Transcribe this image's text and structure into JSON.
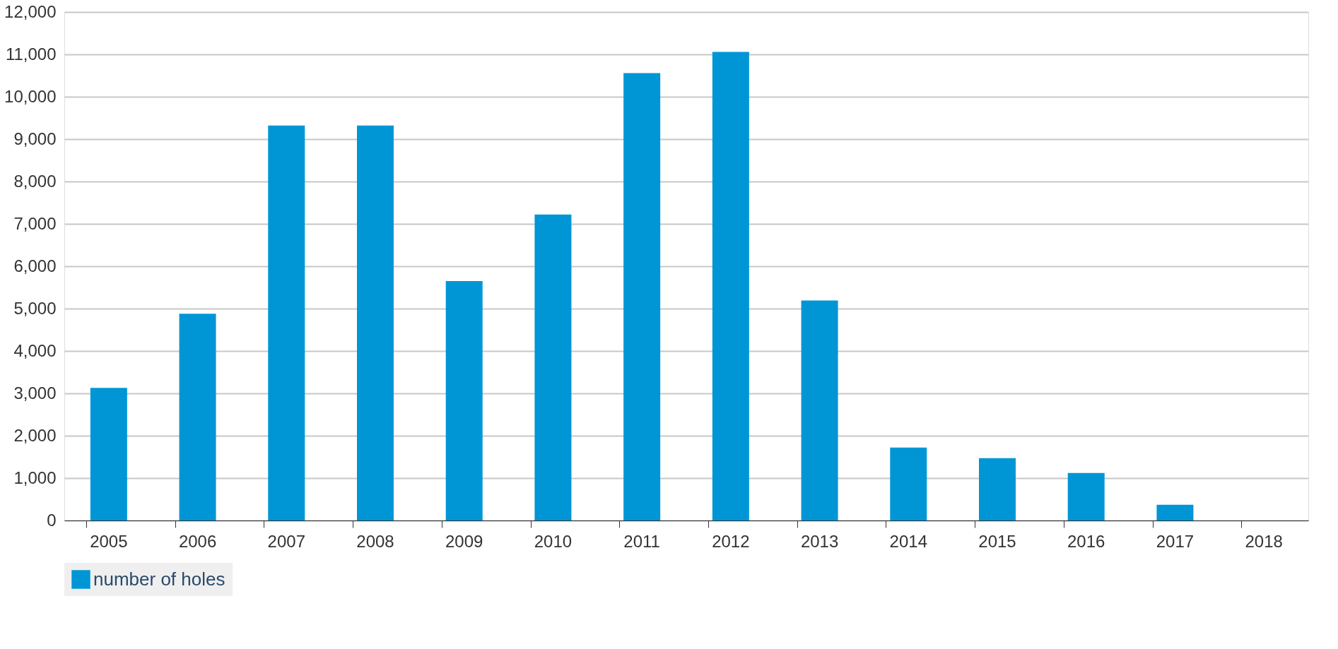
{
  "chart_data": {
    "type": "bar",
    "categories": [
      "2005",
      "2006",
      "2007",
      "2008",
      "2009",
      "2010",
      "2011",
      "2012",
      "2013",
      "2014",
      "2015",
      "2016",
      "2017",
      "2018"
    ],
    "series": [
      {
        "name": "number of holes",
        "color": "#0096d6",
        "values": [
          3130,
          4880,
          9320,
          9320,
          5650,
          7220,
          10560,
          11060,
          5190,
          1720,
          1470,
          1120,
          370,
          0
        ]
      }
    ],
    "ylim": [
      0,
      12000
    ],
    "yticks": [
      0,
      {
        "value": 1000,
        "label": "1,000"
      },
      {
        "value": 2000,
        "label": "2,000"
      },
      {
        "value": 3000,
        "label": "3,000"
      },
      {
        "value": 4000,
        "label": "4,000"
      },
      {
        "value": 5000,
        "label": "5,000"
      },
      {
        "value": 6000,
        "label": "6,000"
      },
      {
        "value": 7000,
        "label": "7,000"
      },
      {
        "value": 8000,
        "label": "8,000"
      },
      {
        "value": 9000,
        "label": "9,000"
      },
      {
        "value": 10000,
        "label": "10,000"
      },
      {
        "value": 11000,
        "label": "11,000"
      },
      {
        "value": 12000,
        "label": "12,000"
      }
    ],
    "grid": "y",
    "legend": "bottom"
  }
}
